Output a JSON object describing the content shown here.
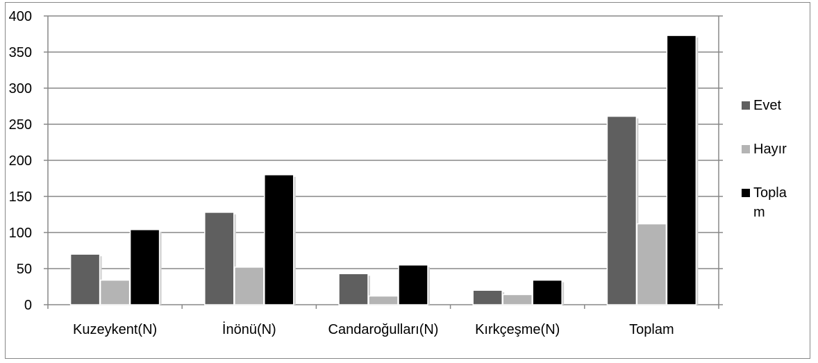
{
  "chart_data": {
    "type": "bar",
    "categories": [
      "Kuzeykent(N)",
      "İnönü(N)",
      "Candaroğulları(N)",
      "Kırkçeşme(N)",
      "Toplam"
    ],
    "series": [
      {
        "name": "Evet",
        "values": [
          70,
          128,
          43,
          20,
          261
        ],
        "color": "#5f5f5f"
      },
      {
        "name": "Hayır",
        "values": [
          34,
          52,
          12,
          14,
          112
        ],
        "color": "#b4b4b4"
      },
      {
        "name": "Topla m",
        "values": [
          104,
          180,
          55,
          34,
          373
        ],
        "color": "#000000"
      }
    ],
    "ylim": [
      0,
      400
    ],
    "yticks": [
      0,
      50,
      100,
      150,
      200,
      250,
      300,
      350,
      400
    ],
    "grid": true,
    "legend_position": "right",
    "title": "",
    "xlabel": "",
    "ylabel": ""
  }
}
